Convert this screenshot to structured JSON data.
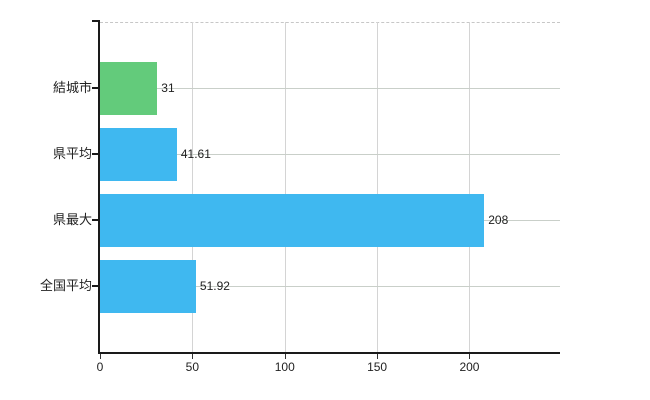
{
  "chart_data": {
    "type": "bar",
    "orientation": "horizontal",
    "title": "",
    "xlabel": "",
    "ylabel": "",
    "legend": "none",
    "grid": "vertical gridlines at x ticks, horizontal gridline at each category center, dashed gridline at plot top",
    "categories": [
      "結城市",
      "県平均",
      "県最大",
      "全国平均"
    ],
    "values": [
      31,
      41.61,
      208,
      51.92
    ],
    "value_labels": [
      "31",
      "41.61",
      "208",
      "51.92"
    ],
    "bar_colors": [
      "#63cb7b",
      "#3fb8f0",
      "#3fb8f0",
      "#3fb8f0"
    ],
    "xticks": [
      0,
      50,
      100,
      150,
      200
    ],
    "xtick_labels": [
      "0",
      "50",
      "100",
      "150",
      "200"
    ],
    "xlim": [
      0,
      249
    ]
  },
  "colors": {
    "bar_blue": "#3fb8f0",
    "bar_green": "#63cb7b",
    "gridline_vertical": "#d4d4d4",
    "gridline_horizontal": "#c9cfc9",
    "gridline_top_dashed": "#c7c7c7",
    "axis": "#1a1a1a",
    "text": "#222222",
    "background": "#ffffff"
  }
}
